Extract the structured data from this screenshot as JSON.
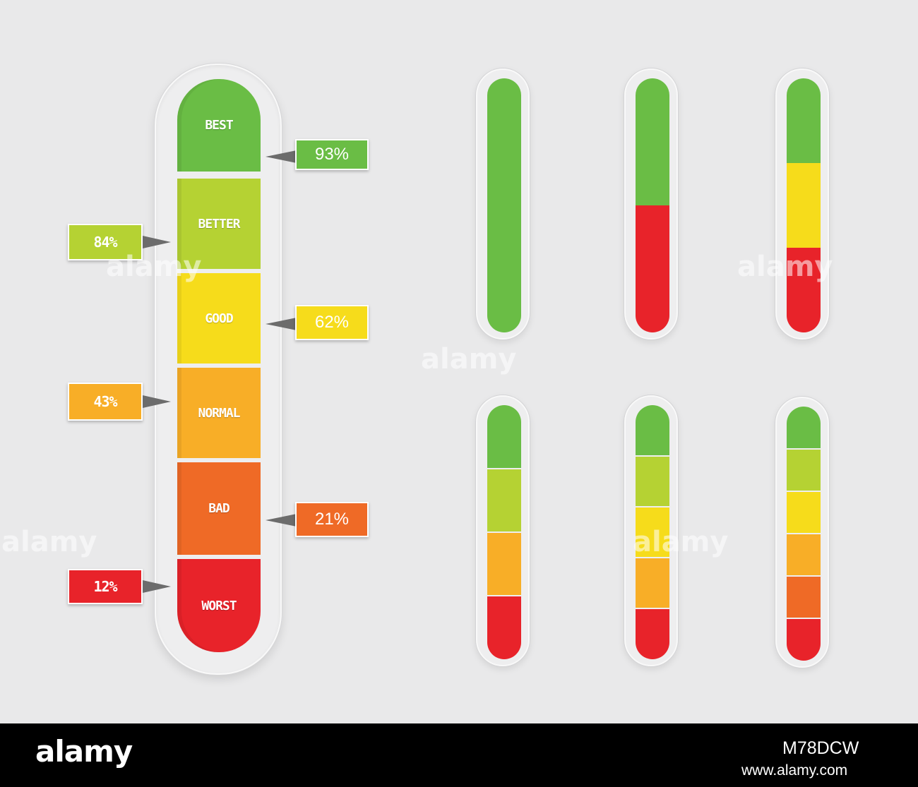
{
  "colors": {
    "best": "#6abd45",
    "better": "#b5d233",
    "good": "#f6dc1b",
    "normal": "#f8ae27",
    "bad": "#ef6a26",
    "worst": "#e8232a"
  },
  "scale": [
    {
      "key": "best",
      "label": "BEST"
    },
    {
      "key": "better",
      "label": "BETTER"
    },
    {
      "key": "good",
      "label": "GOOD"
    },
    {
      "key": "normal",
      "label": "NORMAL"
    },
    {
      "key": "bad",
      "label": "BAD"
    },
    {
      "key": "worst",
      "label": "WORST"
    }
  ],
  "callouts": {
    "best": {
      "text": "93%"
    },
    "better": {
      "text": "84%"
    },
    "good": {
      "text": "62%"
    },
    "normal": {
      "text": "43%"
    },
    "bad": {
      "text": "21%"
    },
    "worst": {
      "text": "12%"
    }
  },
  "meters": [
    {
      "segments": [
        "best"
      ]
    },
    {
      "segments": [
        "best",
        "worst"
      ]
    },
    {
      "segments": [
        "best",
        "good",
        "worst"
      ]
    },
    {
      "segments": [
        "best",
        "better",
        "normal",
        "worst"
      ]
    },
    {
      "segments": [
        "best",
        "better",
        "good",
        "normal",
        "worst"
      ]
    },
    {
      "segments": [
        "best",
        "better",
        "good",
        "normal",
        "bad",
        "worst"
      ]
    }
  ],
  "watermark": "alamy",
  "footer": {
    "logo": "alamy",
    "code": "M78DCW",
    "site": "www.alamy.com"
  }
}
